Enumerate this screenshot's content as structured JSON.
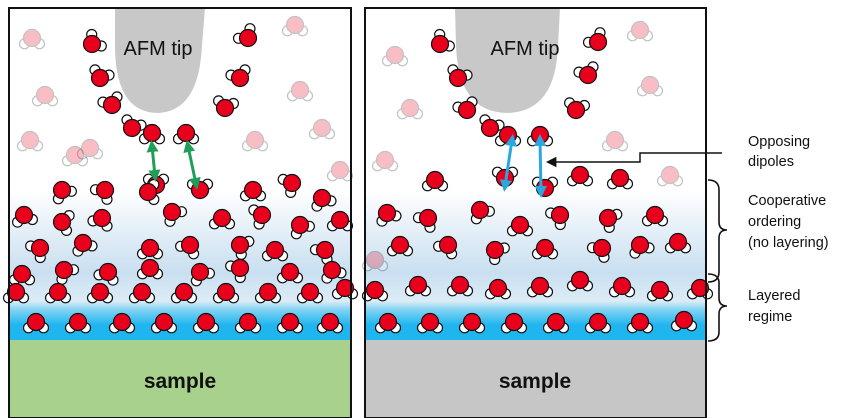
{
  "panels": [
    {
      "tip_label": "AFM tip",
      "sample_label": "sample",
      "sample_color": "#a9d18e",
      "dipole_color": "#1f9e57"
    },
    {
      "tip_label": "AFM tip",
      "sample_label": "sample",
      "sample_color": "#c6c6c6",
      "dipole_color": "#29a8e0"
    }
  ],
  "annotations": {
    "opposing_dipoles": [
      "Opposing",
      "dipoles"
    ],
    "cooperative_ordering": [
      "Cooperative",
      "ordering",
      "(no layering)"
    ],
    "layered_regime": [
      "Layered",
      "regime"
    ]
  },
  "colors": {
    "oxygen": "#e8001c",
    "hydrogen": "#ffffff",
    "tip": "#c8c8c8",
    "water_gradient_top": "#ffffff",
    "water_gradient_mid": "#c9dff0",
    "water_layer_blue": "#1fb6ef"
  }
}
